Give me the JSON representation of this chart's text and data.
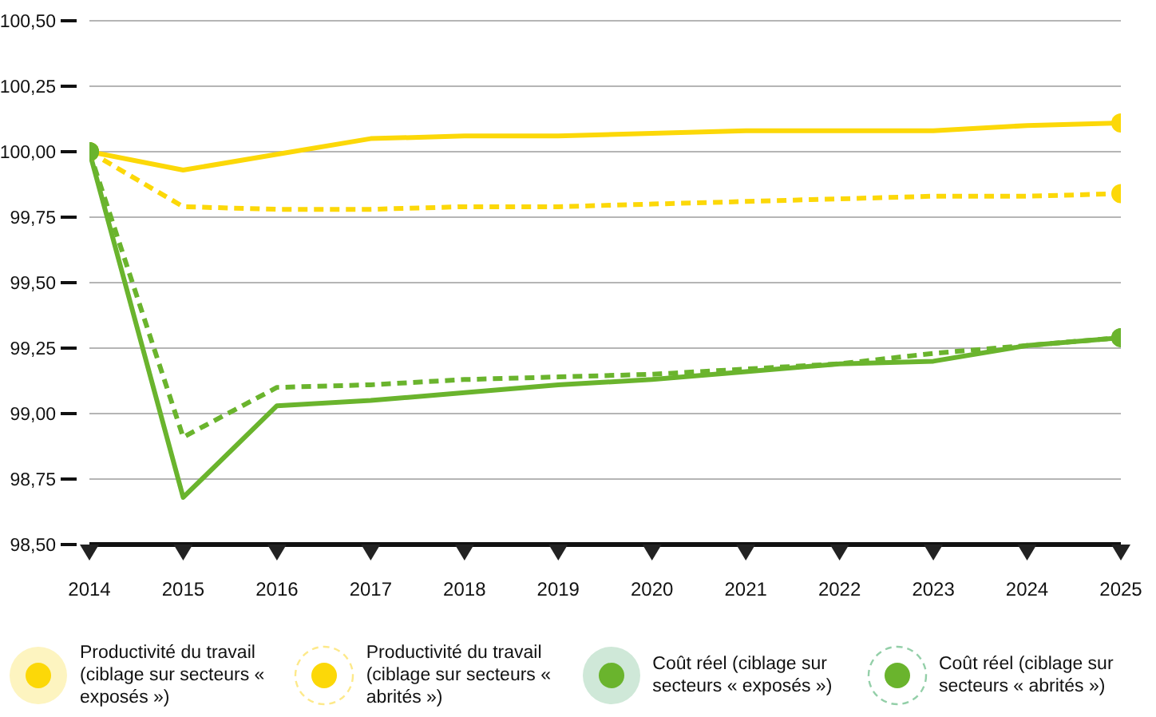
{
  "chart_data": {
    "type": "line",
    "x": [
      2014,
      2015,
      2016,
      2017,
      2018,
      2019,
      2020,
      2021,
      2022,
      2023,
      2024,
      2025
    ],
    "xlim": [
      2014,
      2025
    ],
    "xticks": [
      2014,
      2015,
      2016,
      2017,
      2018,
      2019,
      2020,
      2021,
      2022,
      2023,
      2024,
      2025
    ],
    "ylim": [
      98.5,
      100.5
    ],
    "yticks": [
      {
        "value": 98.5,
        "label": "98,50"
      },
      {
        "value": 98.75,
        "label": "98,75"
      },
      {
        "value": 99,
        "label": "99,00"
      },
      {
        "value": 99.25,
        "label": "99,25"
      },
      {
        "value": 99.5,
        "label": "99,50"
      },
      {
        "value": 99.75,
        "label": "99,75"
      },
      {
        "value": 100,
        "label": "100,00"
      },
      {
        "value": 100.25,
        "label": "100,25"
      },
      {
        "value": 100.5,
        "label": "100,50"
      }
    ],
    "grid": "y",
    "legend": "bottom",
    "series": [
      {
        "name": "Productivité du travail (ciblage sur secteurs « exposés »)",
        "color": "#fcd808",
        "line_style": "solid",
        "values": [
          100,
          99.93,
          99.99,
          100.05,
          100.06,
          100.06,
          100.07,
          100.08,
          100.08,
          100.08,
          100.1,
          100.11
        ]
      },
      {
        "name": "Productivité du travail (ciblage sur secteurs « abrités »)",
        "color": "#fcd808",
        "line_style": "dashed",
        "values": [
          100,
          99.79,
          99.78,
          99.78,
          99.79,
          99.79,
          99.8,
          99.81,
          99.82,
          99.83,
          99.83,
          99.84
        ]
      },
      {
        "name": "Coût réel (ciblage sur secteurs « exposés »)",
        "color": "#6ab42d",
        "line_style": "solid",
        "values": [
          100,
          98.68,
          99.03,
          99.05,
          99.08,
          99.11,
          99.13,
          99.16,
          99.19,
          99.2,
          99.26,
          99.29
        ]
      },
      {
        "name": "Coût réel (ciblage sur secteurs « abrités »)",
        "color": "#6ab42d",
        "line_style": "dashed",
        "values": [
          100,
          98.91,
          99.1,
          99.11,
          99.13,
          99.14,
          99.15,
          99.17,
          99.19,
          99.23,
          99.26,
          99.29
        ]
      }
    ]
  }
}
